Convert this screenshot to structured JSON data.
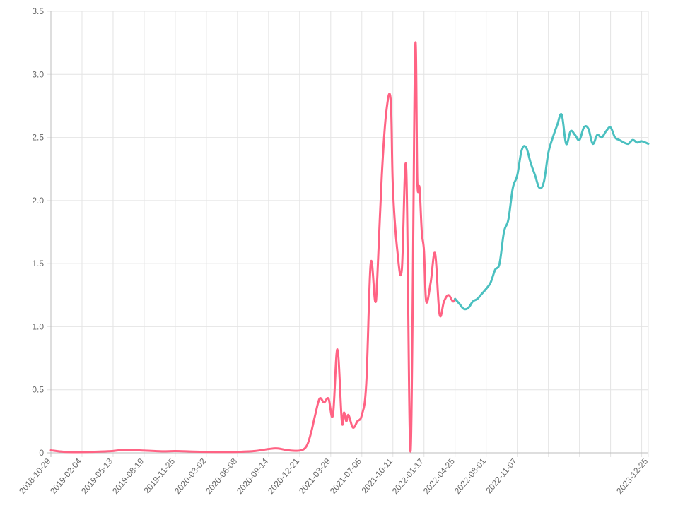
{
  "chart_data": {
    "type": "line",
    "title": "",
    "xlabel": "",
    "ylabel": "",
    "ylim": [
      0,
      3.5
    ],
    "yticks": [
      "0",
      "0.5",
      "1.0",
      "1.5",
      "2.0",
      "2.5",
      "3.0",
      "3.5"
    ],
    "yticks_values": [
      0,
      0.5,
      1.0,
      1.5,
      2.0,
      2.5,
      3.0,
      3.5
    ],
    "xlim": [
      "2018-10-29",
      "2023-12-25"
    ],
    "xticks": [
      "2018-10-29",
      "2019-02-04",
      "2019-05-13",
      "2019-08-19",
      "2019-11-25",
      "2020-03-02",
      "2020-06-08",
      "2020-09-14",
      "2020-12-21",
      "2021-03-29",
      "2021-07-05",
      "2021-10-11",
      "2022-01-17",
      "2022-04-25",
      "2022-08-01",
      "2022-11-07",
      "2023-12-25"
    ],
    "grid": true,
    "legend": "none",
    "series": [
      {
        "color": "#ff6384",
        "x": [
          "2018-10-29",
          "2018-12-10",
          "2019-02-04",
          "2019-04-01",
          "2019-05-13",
          "2019-06-24",
          "2019-08-19",
          "2019-10-14",
          "2019-11-25",
          "2020-01-20",
          "2020-03-02",
          "2020-04-27",
          "2020-06-08",
          "2020-08-03",
          "2020-09-14",
          "2020-10-12",
          "2020-11-16",
          "2020-12-21",
          "2021-01-11",
          "2021-01-25",
          "2021-02-08",
          "2021-02-22",
          "2021-03-08",
          "2021-03-22",
          "2021-04-05",
          "2021-04-19",
          "2021-05-03",
          "2021-05-10",
          "2021-05-17",
          "2021-05-24",
          "2021-06-07",
          "2021-06-21",
          "2021-07-05",
          "2021-07-19",
          "2021-08-02",
          "2021-08-16",
          "2021-08-23",
          "2021-09-06",
          "2021-09-20",
          "2021-10-04",
          "2021-10-11",
          "2021-10-25",
          "2021-11-08",
          "2021-11-22",
          "2021-12-06",
          "2021-12-20",
          "2021-12-27",
          "2022-01-03",
          "2022-01-10",
          "2022-01-17",
          "2022-01-24",
          "2022-02-07",
          "2022-02-21",
          "2022-03-07",
          "2022-03-21",
          "2022-04-04",
          "2022-04-18",
          "2022-04-25"
        ],
        "values": [
          0.02,
          0.008,
          0.006,
          0.01,
          0.015,
          0.025,
          0.018,
          0.012,
          0.014,
          0.01,
          0.008,
          0.007,
          0.008,
          0.015,
          0.03,
          0.035,
          0.02,
          0.018,
          0.05,
          0.15,
          0.3,
          0.43,
          0.4,
          0.43,
          0.3,
          0.82,
          0.25,
          0.32,
          0.25,
          0.3,
          0.2,
          0.25,
          0.3,
          0.55,
          1.5,
          1.2,
          1.4,
          2.2,
          2.7,
          2.8,
          2.1,
          1.6,
          1.45,
          2.25,
          0.02,
          3.18,
          2.15,
          2.1,
          1.75,
          1.6,
          1.2,
          1.35,
          1.58,
          1.1,
          1.2,
          1.25,
          1.2,
          1.22
        ]
      },
      {
        "color": "#4bc0c0",
        "x": [
          "2022-04-25",
          "2022-05-09",
          "2022-05-23",
          "2022-06-06",
          "2022-06-20",
          "2022-07-04",
          "2022-07-18",
          "2022-08-01",
          "2022-08-15",
          "2022-08-29",
          "2022-09-12",
          "2022-09-26",
          "2022-10-10",
          "2022-10-24",
          "2022-11-07",
          "2022-11-21",
          "2022-12-05",
          "2022-12-19",
          "2023-01-02",
          "2023-01-16",
          "2023-01-30",
          "2023-02-13",
          "2023-02-27",
          "2023-03-13",
          "2023-03-27",
          "2023-04-10",
          "2023-04-24",
          "2023-05-08",
          "2023-05-22",
          "2023-06-05",
          "2023-06-19",
          "2023-07-03",
          "2023-07-17",
          "2023-07-31",
          "2023-08-14",
          "2023-08-28",
          "2023-09-11",
          "2023-09-25",
          "2023-10-09",
          "2023-10-23",
          "2023-11-06",
          "2023-11-20",
          "2023-12-04",
          "2023-12-25"
        ],
        "values": [
          1.22,
          1.18,
          1.14,
          1.15,
          1.2,
          1.22,
          1.26,
          1.3,
          1.35,
          1.45,
          1.5,
          1.75,
          1.85,
          2.1,
          2.2,
          2.4,
          2.42,
          2.3,
          2.2,
          2.1,
          2.15,
          2.38,
          2.5,
          2.6,
          2.68,
          2.45,
          2.55,
          2.52,
          2.48,
          2.58,
          2.57,
          2.45,
          2.52,
          2.5,
          2.55,
          2.58,
          2.5,
          2.48,
          2.46,
          2.45,
          2.48,
          2.46,
          2.47,
          2.45
        ]
      }
    ]
  }
}
